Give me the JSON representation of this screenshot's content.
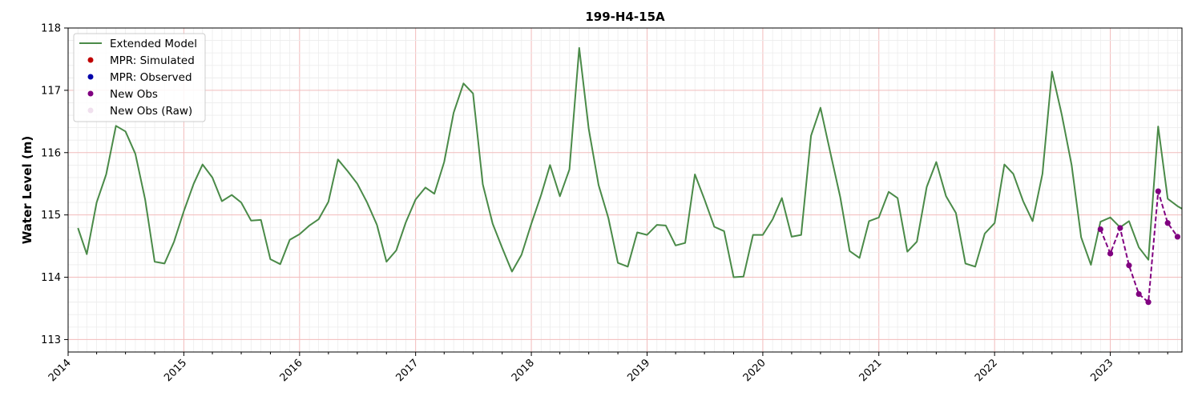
{
  "chart_data": {
    "type": "line",
    "title": "199-H4-15A",
    "xlabel": "",
    "ylabel": "Water Level (m)",
    "xlim": [
      "2014-01-01",
      "2023-08-15"
    ],
    "ylim": [
      112.8,
      118.0
    ],
    "y_ticks": [
      113,
      114,
      115,
      116,
      117,
      118
    ],
    "x_ticks": [
      "2014",
      "2015",
      "2016",
      "2017",
      "2018",
      "2019",
      "2020",
      "2021",
      "2022",
      "2023"
    ],
    "grid": true,
    "legend_position": "top-left",
    "legend": [
      {
        "label": "Extended Model",
        "type": "line",
        "color": "#4a8a48"
      },
      {
        "label": "MPR: Simulated",
        "type": "marker",
        "color": "#c00000"
      },
      {
        "label": "MPR: Observed",
        "type": "marker",
        "color": "#0000aa"
      },
      {
        "label": "New Obs",
        "type": "marker",
        "color": "#800080"
      },
      {
        "label": "New Obs (Raw)",
        "type": "marker",
        "color": "#f0e0ee"
      }
    ],
    "series": [
      {
        "name": "Extended Model",
        "color": "#4a8a48",
        "style": "solid",
        "points": [
          [
            "2014-02-01",
            114.79
          ],
          [
            "2014-03-01",
            114.37
          ],
          [
            "2014-04-01",
            115.2
          ],
          [
            "2014-05-01",
            115.65
          ],
          [
            "2014-06-01",
            116.43
          ],
          [
            "2014-07-01",
            116.34
          ],
          [
            "2014-08-01",
            115.98
          ],
          [
            "2014-09-01",
            115.25
          ],
          [
            "2014-10-01",
            114.25
          ],
          [
            "2014-11-01",
            114.22
          ],
          [
            "2014-12-01",
            114.57
          ],
          [
            "2015-01-01",
            115.06
          ],
          [
            "2015-02-01",
            115.5
          ],
          [
            "2015-03-01",
            115.81
          ],
          [
            "2015-04-01",
            115.6
          ],
          [
            "2015-05-01",
            115.22
          ],
          [
            "2015-06-01",
            115.32
          ],
          [
            "2015-07-01",
            115.2
          ],
          [
            "2015-08-01",
            114.91
          ],
          [
            "2015-09-01",
            114.92
          ],
          [
            "2015-10-01",
            114.29
          ],
          [
            "2015-11-01",
            114.21
          ],
          [
            "2015-12-01",
            114.6
          ],
          [
            "2016-01-01",
            114.69
          ],
          [
            "2016-02-01",
            114.83
          ],
          [
            "2016-03-01",
            114.93
          ],
          [
            "2016-04-01",
            115.21
          ],
          [
            "2016-05-01",
            115.89
          ],
          [
            "2016-06-01",
            115.7
          ],
          [
            "2016-07-01",
            115.5
          ],
          [
            "2016-08-01",
            115.2
          ],
          [
            "2016-09-01",
            114.84
          ],
          [
            "2016-10-01",
            114.25
          ],
          [
            "2016-11-01",
            114.43
          ],
          [
            "2016-12-01",
            114.88
          ],
          [
            "2017-01-01",
            115.25
          ],
          [
            "2017-02-01",
            115.44
          ],
          [
            "2017-03-01",
            115.34
          ],
          [
            "2017-04-01",
            115.85
          ],
          [
            "2017-05-01",
            116.64
          ],
          [
            "2017-06-01",
            117.11
          ],
          [
            "2017-07-01",
            116.95
          ],
          [
            "2017-08-01",
            115.49
          ],
          [
            "2017-09-01",
            114.86
          ],
          [
            "2017-10-01",
            114.47
          ],
          [
            "2017-11-01",
            114.09
          ],
          [
            "2017-12-01",
            114.36
          ],
          [
            "2018-01-01",
            114.86
          ],
          [
            "2018-02-01",
            115.32
          ],
          [
            "2018-03-01",
            115.8
          ],
          [
            "2018-04-01",
            115.3
          ],
          [
            "2018-05-01",
            115.73
          ],
          [
            "2018-06-01",
            117.68
          ],
          [
            "2018-07-01",
            116.38
          ],
          [
            "2018-08-01",
            115.48
          ],
          [
            "2018-09-01",
            114.95
          ],
          [
            "2018-10-01",
            114.23
          ],
          [
            "2018-11-01",
            114.17
          ],
          [
            "2018-12-01",
            114.72
          ],
          [
            "2019-01-01",
            114.68
          ],
          [
            "2019-02-01",
            114.84
          ],
          [
            "2019-03-01",
            114.83
          ],
          [
            "2019-04-01",
            114.51
          ],
          [
            "2019-05-01",
            114.55
          ],
          [
            "2019-06-01",
            115.65
          ],
          [
            "2019-07-01",
            115.25
          ],
          [
            "2019-08-01",
            114.81
          ],
          [
            "2019-09-01",
            114.74
          ],
          [
            "2019-10-01",
            114.0
          ],
          [
            "2019-11-01",
            114.01
          ],
          [
            "2019-12-01",
            114.68
          ],
          [
            "2020-01-01",
            114.68
          ],
          [
            "2020-02-01",
            114.93
          ],
          [
            "2020-03-01",
            115.27
          ],
          [
            "2020-04-01",
            114.65
          ],
          [
            "2020-05-01",
            114.68
          ],
          [
            "2020-06-01",
            116.27
          ],
          [
            "2020-07-01",
            116.72
          ],
          [
            "2020-08-01",
            116.0
          ],
          [
            "2020-09-01",
            115.29
          ],
          [
            "2020-10-01",
            114.42
          ],
          [
            "2020-11-01",
            114.31
          ],
          [
            "2020-12-01",
            114.9
          ],
          [
            "2021-01-01",
            114.96
          ],
          [
            "2021-02-01",
            115.37
          ],
          [
            "2021-03-01",
            115.27
          ],
          [
            "2021-04-01",
            114.41
          ],
          [
            "2021-05-01",
            114.57
          ],
          [
            "2021-06-01",
            115.45
          ],
          [
            "2021-07-01",
            115.85
          ],
          [
            "2021-08-01",
            115.3
          ],
          [
            "2021-09-01",
            115.03
          ],
          [
            "2021-10-01",
            114.22
          ],
          [
            "2021-11-01",
            114.17
          ],
          [
            "2021-12-01",
            114.7
          ],
          [
            "2022-01-01",
            114.87
          ],
          [
            "2022-02-01",
            115.81
          ],
          [
            "2022-03-01",
            115.66
          ],
          [
            "2022-04-01",
            115.22
          ],
          [
            "2022-05-01",
            114.9
          ],
          [
            "2022-06-01",
            115.66
          ],
          [
            "2022-07-01",
            117.3
          ],
          [
            "2022-08-01",
            116.61
          ],
          [
            "2022-09-01",
            115.8
          ],
          [
            "2022-10-01",
            114.64
          ],
          [
            "2022-11-01",
            114.2
          ],
          [
            "2022-12-01",
            114.89
          ],
          [
            "2023-01-01",
            114.96
          ],
          [
            "2023-02-01",
            114.8
          ],
          [
            "2023-03-01",
            114.9
          ],
          [
            "2023-04-01",
            114.48
          ],
          [
            "2023-05-01",
            114.28
          ],
          [
            "2023-06-01",
            116.42
          ],
          [
            "2023-07-01",
            115.26
          ],
          [
            "2023-08-01",
            115.14
          ],
          [
            "2023-08-15",
            115.1
          ]
        ]
      },
      {
        "name": "New Obs",
        "color": "#800080",
        "style": "dashed",
        "markers": true,
        "points": [
          [
            "2022-12-01",
            114.77
          ],
          [
            "2023-01-01",
            114.38
          ],
          [
            "2023-02-01",
            114.79
          ],
          [
            "2023-03-01",
            114.19
          ],
          [
            "2023-04-01",
            113.73
          ],
          [
            "2023-05-01",
            113.6
          ],
          [
            "2023-06-01",
            115.38
          ],
          [
            "2023-07-01",
            114.87
          ],
          [
            "2023-08-01",
            114.65
          ]
        ]
      }
    ]
  }
}
